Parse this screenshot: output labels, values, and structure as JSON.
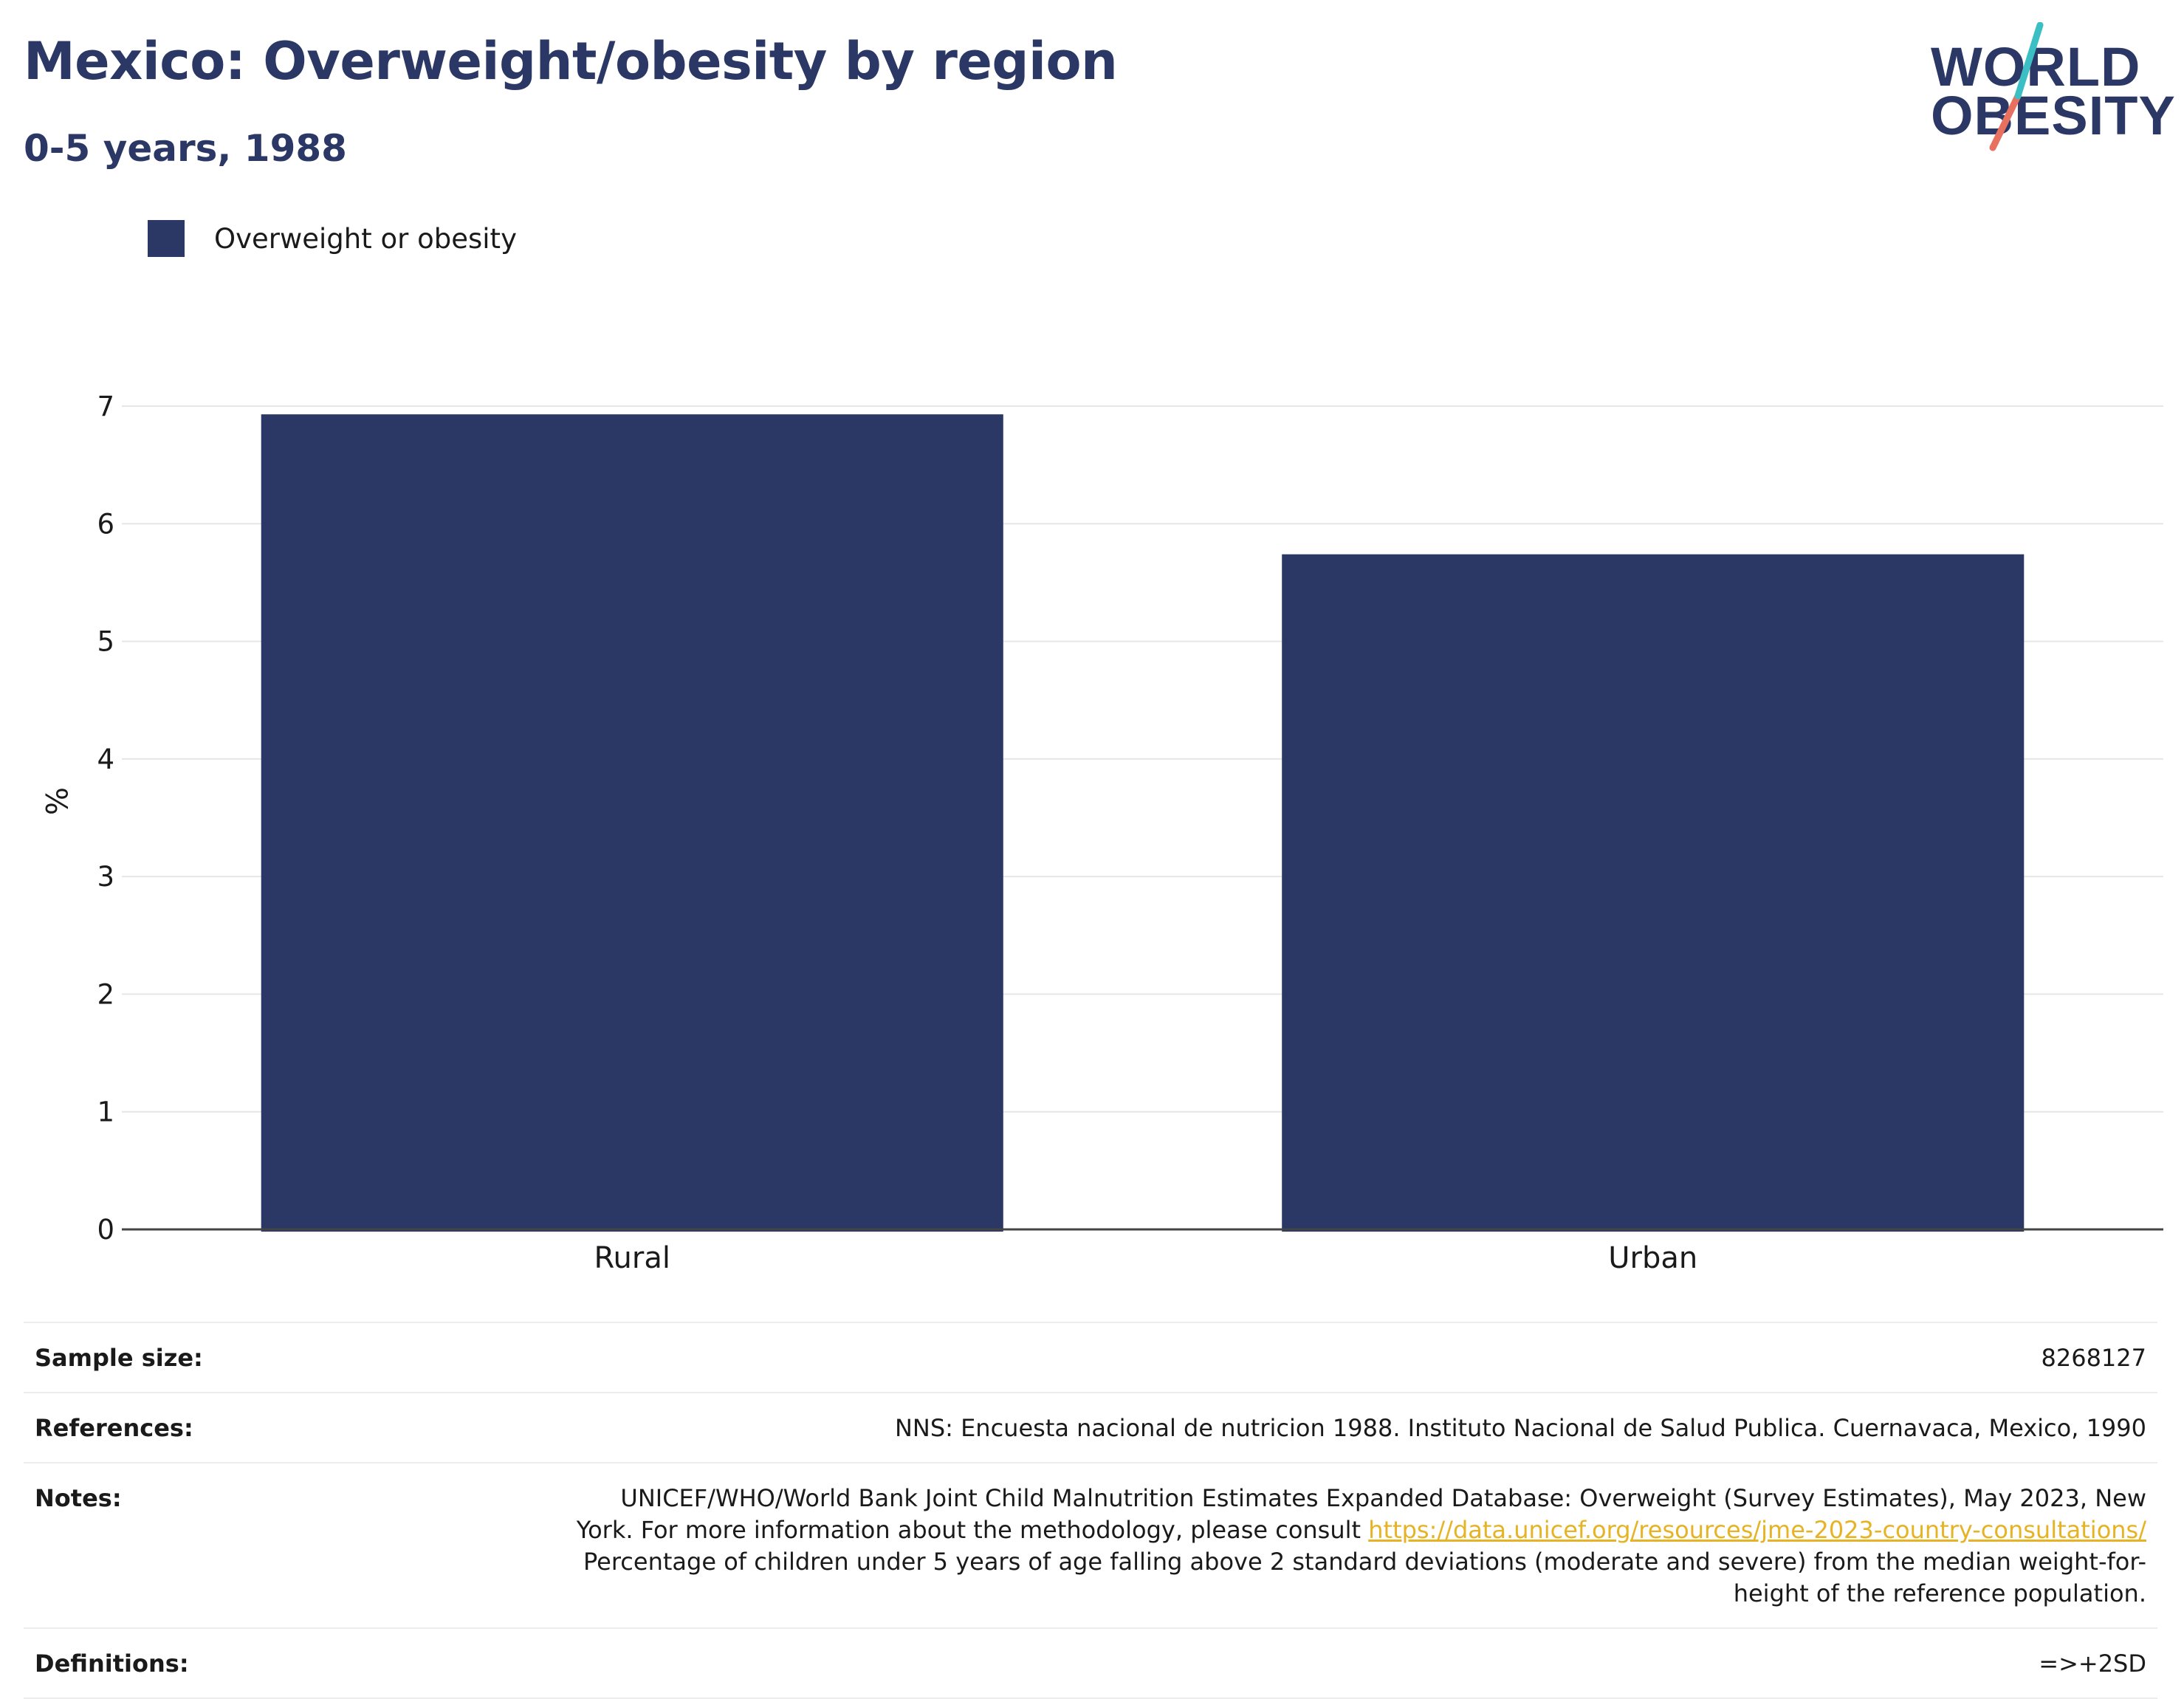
{
  "header": {
    "title": "Mexico: Overweight/obesity by region",
    "subtitle": "0-5 years, 1988"
  },
  "logo": {
    "line1": "WORLD",
    "line2": "OBESITY",
    "colors": {
      "navy": "#2b3764",
      "teal": "#3bbfc4",
      "coral": "#e8705f"
    }
  },
  "colors": {
    "bar": "#2b3764",
    "link": "#e6b325",
    "grid": "#e6e6e6"
  },
  "chart_data": {
    "type": "bar",
    "categories": [
      "Rural",
      "Urban"
    ],
    "series": [
      {
        "name": "Overweight or obesity",
        "values": [
          6.93,
          5.74
        ]
      }
    ],
    "ylabel": "%",
    "xlabel": "",
    "ylim": [
      0,
      7
    ],
    "yticks": [
      0,
      1,
      2,
      3,
      4,
      5,
      6,
      7
    ],
    "grid": true,
    "legend": "top-left"
  },
  "info": {
    "sample_size_label": "Sample size:",
    "sample_size_value": "8268127",
    "references_label": "References:",
    "references_value": "NNS: Encuesta nacional de nutricion 1988. Instituto Nacional de Salud Publica. Cuernavaca, Mexico, 1990",
    "notes_label": "Notes:",
    "notes_text_1": "UNICEF/WHO/World Bank Joint Child Malnutrition Estimates Expanded Database: Overweight (Survey Estimates), May 2023, New York. For more information about the methodology, please consult ",
    "notes_link": "https://data.unicef.org/resources/jme-2023-country-consultations/",
    "notes_text_2": " Percentage of children under 5 years of age falling above 2 standard deviations (moderate and severe) from the median weight-for-height of the reference population.",
    "definitions_label": "Definitions:",
    "definitions_value": "=>+2SD"
  }
}
